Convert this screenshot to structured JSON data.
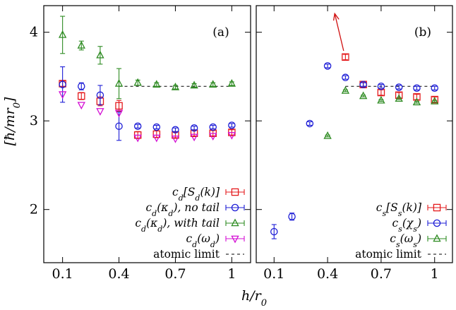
{
  "chart_data": [
    {
      "type": "scatter",
      "panel_label": "(a)",
      "xlabel": "h/r0",
      "ylabel": "[ħ/mr0]",
      "xlim": [
        0.0,
        1.1
      ],
      "ylim": [
        1.4,
        4.3
      ],
      "x_ticks": [
        "0.1",
        "0.4",
        "0.7",
        "1"
      ],
      "y_ticks": [
        "2",
        "3",
        "4"
      ],
      "legend_position": "bottom-right",
      "atomic_limit": 3.39,
      "atomic_limit_xrange": [
        0.4,
        1.0
      ],
      "series": [
        {
          "name": "c_d[S_d(k)]",
          "marker": "square",
          "color": "#e41a1c",
          "x": [
            0.1,
            0.2,
            0.3,
            0.4,
            0.5,
            0.6,
            0.7,
            0.8,
            0.9,
            1.0
          ],
          "y": [
            3.42,
            3.28,
            3.22,
            3.17,
            2.84,
            2.85,
            2.84,
            2.86,
            2.86,
            2.87
          ],
          "err": [
            0.03,
            0.04,
            0.05,
            0.06,
            0.04,
            0.04,
            0.03,
            0.03,
            0.03,
            0.03
          ]
        },
        {
          "name": "c_d(κ_d), no tail",
          "marker": "circle",
          "color": "#1c1cd6",
          "x": [
            0.1,
            0.2,
            0.3,
            0.4,
            0.5,
            0.6,
            0.7,
            0.8,
            0.9,
            1.0
          ],
          "y": [
            3.41,
            3.39,
            3.29,
            2.94,
            2.94,
            2.93,
            2.9,
            2.92,
            2.93,
            2.95
          ],
          "err": [
            0.2,
            0.04,
            0.11,
            0.16,
            0.02,
            0.02,
            0.02,
            0.02,
            0.02,
            0.02
          ]
        },
        {
          "name": "c_d(κ_d), with tail",
          "marker": "triangle-up",
          "color": "#2e8b22",
          "x": [
            0.1,
            0.2,
            0.3,
            0.4,
            0.5,
            0.6,
            0.7,
            0.8,
            0.9,
            1.0
          ],
          "y": [
            3.97,
            3.85,
            3.74,
            3.42,
            3.43,
            3.41,
            3.38,
            3.4,
            3.41,
            3.42
          ],
          "err": [
            0.21,
            0.05,
            0.1,
            0.17,
            0.03,
            0.02,
            0.02,
            0.02,
            0.02,
            0.02
          ]
        },
        {
          "name": "c_d(ω_d)",
          "marker": "triangle-down",
          "color": "#d40fd4",
          "x": [
            0.1,
            0.2,
            0.3,
            0.4,
            0.5,
            0.6,
            0.7,
            0.8,
            0.9,
            1.0
          ],
          "y": [
            3.3,
            3.18,
            3.11,
            3.09,
            2.81,
            2.81,
            2.8,
            2.82,
            2.83,
            2.84
          ],
          "err": [
            0,
            0,
            0,
            0,
            0,
            0,
            0,
            0,
            0,
            0
          ]
        }
      ],
      "legend": [
        {
          "series": 0,
          "label": "c_d[S_d(k)]"
        },
        {
          "series": 1,
          "label": "c_d(κ_d), no tail"
        },
        {
          "series": 2,
          "label": "c_d(κ_d), with tail"
        },
        {
          "series": 3,
          "label": "c_d(ω_d)"
        },
        {
          "label": "atomic limit",
          "dashed": true
        }
      ]
    },
    {
      "type": "scatter",
      "panel_label": "(b)",
      "xlabel": "h/r0",
      "ylabel": "[ħ/mr0]",
      "xlim": [
        0.0,
        1.1
      ],
      "ylim": [
        1.4,
        4.3
      ],
      "x_ticks": [
        "0.1",
        "0.4",
        "0.7",
        "1"
      ],
      "legend_position": "bottom-right",
      "atomic_limit": 3.39,
      "atomic_limit_xrange": [
        0.5,
        1.0
      ],
      "arrow": {
        "from": [
          0.49,
          3.79
        ],
        "to": [
          0.44,
          4.21
        ],
        "color": "#d01010"
      },
      "series": [
        {
          "name": "c_s[S_s(k)]",
          "marker": "square",
          "color": "#e41a1c",
          "x": [
            0.5,
            0.6,
            0.7,
            0.8,
            0.9,
            1.0
          ],
          "y": [
            3.72,
            3.41,
            3.32,
            3.29,
            3.27,
            3.24
          ],
          "err": [
            0.03,
            0.03,
            0.03,
            0.03,
            0.03,
            0.03
          ]
        },
        {
          "name": "c_s(χ_s)",
          "marker": "circle",
          "color": "#1c1cd6",
          "x": [
            0.1,
            0.2,
            0.3,
            0.4,
            0.5,
            0.6,
            0.7,
            0.8,
            0.9,
            1.0
          ],
          "y": [
            1.75,
            1.92,
            2.97,
            3.62,
            3.49,
            3.41,
            3.39,
            3.38,
            3.37,
            3.37
          ],
          "err": [
            0.08,
            0.04,
            0.02,
            0.02,
            0.02,
            0.02,
            0.02,
            0.02,
            0.02,
            0.02
          ]
        },
        {
          "name": "c_s(ω_s)",
          "marker": "triangle-up",
          "color": "#2e8b22",
          "x": [
            0.4,
            0.5,
            0.6,
            0.7,
            0.8,
            0.9,
            1.0
          ],
          "y": [
            2.83,
            3.34,
            3.28,
            3.23,
            3.25,
            3.21,
            3.22
          ],
          "err": [
            0.01,
            0.01,
            0.01,
            0.01,
            0.01,
            0.01,
            0.01
          ]
        }
      ],
      "legend": [
        {
          "series": 0,
          "label": "c_s[S_s(k)]"
        },
        {
          "series": 1,
          "label": "c_s(χ_s)"
        },
        {
          "series": 2,
          "label": "c_s(ω_s)"
        },
        {
          "label": "atomic limit",
          "dashed": true
        }
      ]
    }
  ]
}
